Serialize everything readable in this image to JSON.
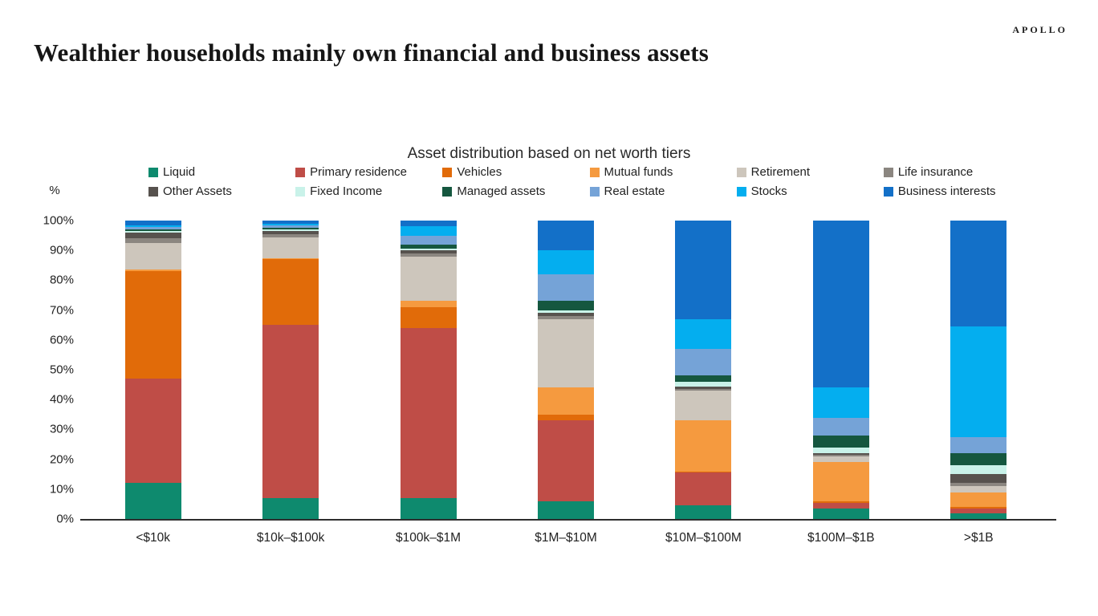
{
  "header": {
    "brand": "APOLLO",
    "title": "Wealthier households mainly own financial and business assets"
  },
  "chart": {
    "title": "Asset distribution based on net worth tiers",
    "y_unit": "%"
  },
  "chart_data": {
    "type": "bar",
    "stacked": true,
    "title": "Asset distribution based on net worth tiers",
    "xlabel": "",
    "ylabel": "%",
    "ylim": [
      0,
      100
    ],
    "ytick_labels": [
      "100%",
      "90%",
      "80%",
      "70%",
      "60%",
      "50%",
      "40%",
      "30%",
      "20%",
      "10%",
      "0%"
    ],
    "legend_position": "top",
    "grid": false,
    "categories": [
      "<$10k",
      "$10k–$100k",
      "$100k–$1M",
      "$1M–$10M",
      "$10M–$100M",
      "$100M–$1B",
      ">$1B"
    ],
    "series": [
      {
        "name": "Liquid",
        "color": "#0E8A6E",
        "values": [
          12,
          7,
          7,
          6,
          4.5,
          3.5,
          2
        ]
      },
      {
        "name": "Primary residence",
        "color": "#BF4D47",
        "values": [
          35,
          58,
          57,
          27,
          11,
          2,
          1.5
        ]
      },
      {
        "name": "Vehicles",
        "color": "#E16B09",
        "values": [
          36,
          22,
          7,
          2,
          0.5,
          0.5,
          0.5
        ]
      },
      {
        "name": "Mutual funds",
        "color": "#F59A3F",
        "values": [
          0.5,
          0.5,
          2,
          9,
          17,
          13,
          5
        ]
      },
      {
        "name": "Retirement",
        "color": "#CDC6BC",
        "values": [
          9,
          7,
          15,
          23,
          10,
          2,
          2
        ]
      },
      {
        "name": "Life insurance",
        "color": "#8B8680",
        "values": [
          1.5,
          1,
          1,
          1,
          0.5,
          0.5,
          1
        ]
      },
      {
        "name": "Other Assets",
        "color": "#57524E",
        "values": [
          2,
          1,
          1,
          1,
          1,
          0.5,
          3
        ]
      },
      {
        "name": "Fixed Income",
        "color": "#C9F2E9",
        "values": [
          0.5,
          0.5,
          0.5,
          1,
          1.5,
          2,
          3
        ]
      },
      {
        "name": "Managed assets",
        "color": "#15573F",
        "values": [
          0.5,
          0.5,
          1.5,
          3,
          2,
          4,
          4
        ]
      },
      {
        "name": "Real estate",
        "color": "#75A3D7",
        "values": [
          1,
          1,
          3,
          9,
          9,
          6,
          5.5
        ]
      },
      {
        "name": "Stocks",
        "color": "#04AEEF",
        "values": [
          0.5,
          0.5,
          3,
          8,
          10,
          10,
          37
        ]
      },
      {
        "name": "Business interests",
        "color": "#1370C8",
        "values": [
          1.5,
          1,
          2,
          10,
          33,
          56,
          35.5
        ]
      }
    ]
  }
}
